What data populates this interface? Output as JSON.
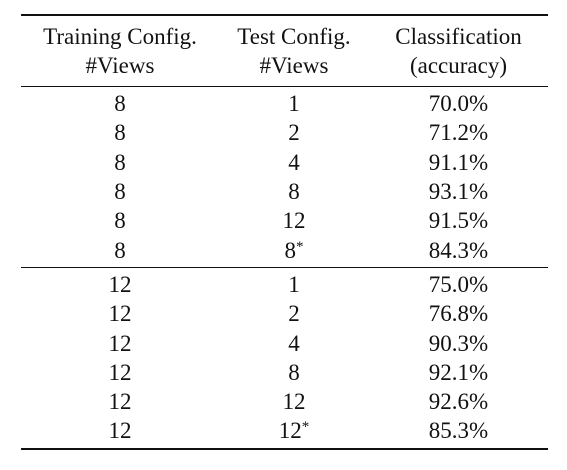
{
  "header": {
    "col1": [
      "Training Config.",
      "#Views"
    ],
    "col2": [
      "Test Config.",
      "#Views"
    ],
    "col3": [
      "Classification",
      "(accuracy)"
    ]
  },
  "groups": [
    {
      "rows": [
        {
          "train": "8",
          "test": "1",
          "test_mark": "",
          "acc": "70.0%"
        },
        {
          "train": "8",
          "test": "2",
          "test_mark": "",
          "acc": "71.2%"
        },
        {
          "train": "8",
          "test": "4",
          "test_mark": "",
          "acc": "91.1%"
        },
        {
          "train": "8",
          "test": "8",
          "test_mark": "",
          "acc": "93.1%"
        },
        {
          "train": "8",
          "test": "12",
          "test_mark": "",
          "acc": "91.5%"
        },
        {
          "train": "8",
          "test": "8",
          "test_mark": "*",
          "acc": "84.3%"
        }
      ]
    },
    {
      "rows": [
        {
          "train": "12",
          "test": "1",
          "test_mark": "",
          "acc": "75.0%"
        },
        {
          "train": "12",
          "test": "2",
          "test_mark": "",
          "acc": "76.8%"
        },
        {
          "train": "12",
          "test": "4",
          "test_mark": "",
          "acc": "90.3%"
        },
        {
          "train": "12",
          "test": "8",
          "test_mark": "",
          "acc": "92.1%"
        },
        {
          "train": "12",
          "test": "12",
          "test_mark": "",
          "acc": "92.6%"
        },
        {
          "train": "12",
          "test": "12",
          "test_mark": "*",
          "acc": "85.3%"
        }
      ]
    }
  ]
}
